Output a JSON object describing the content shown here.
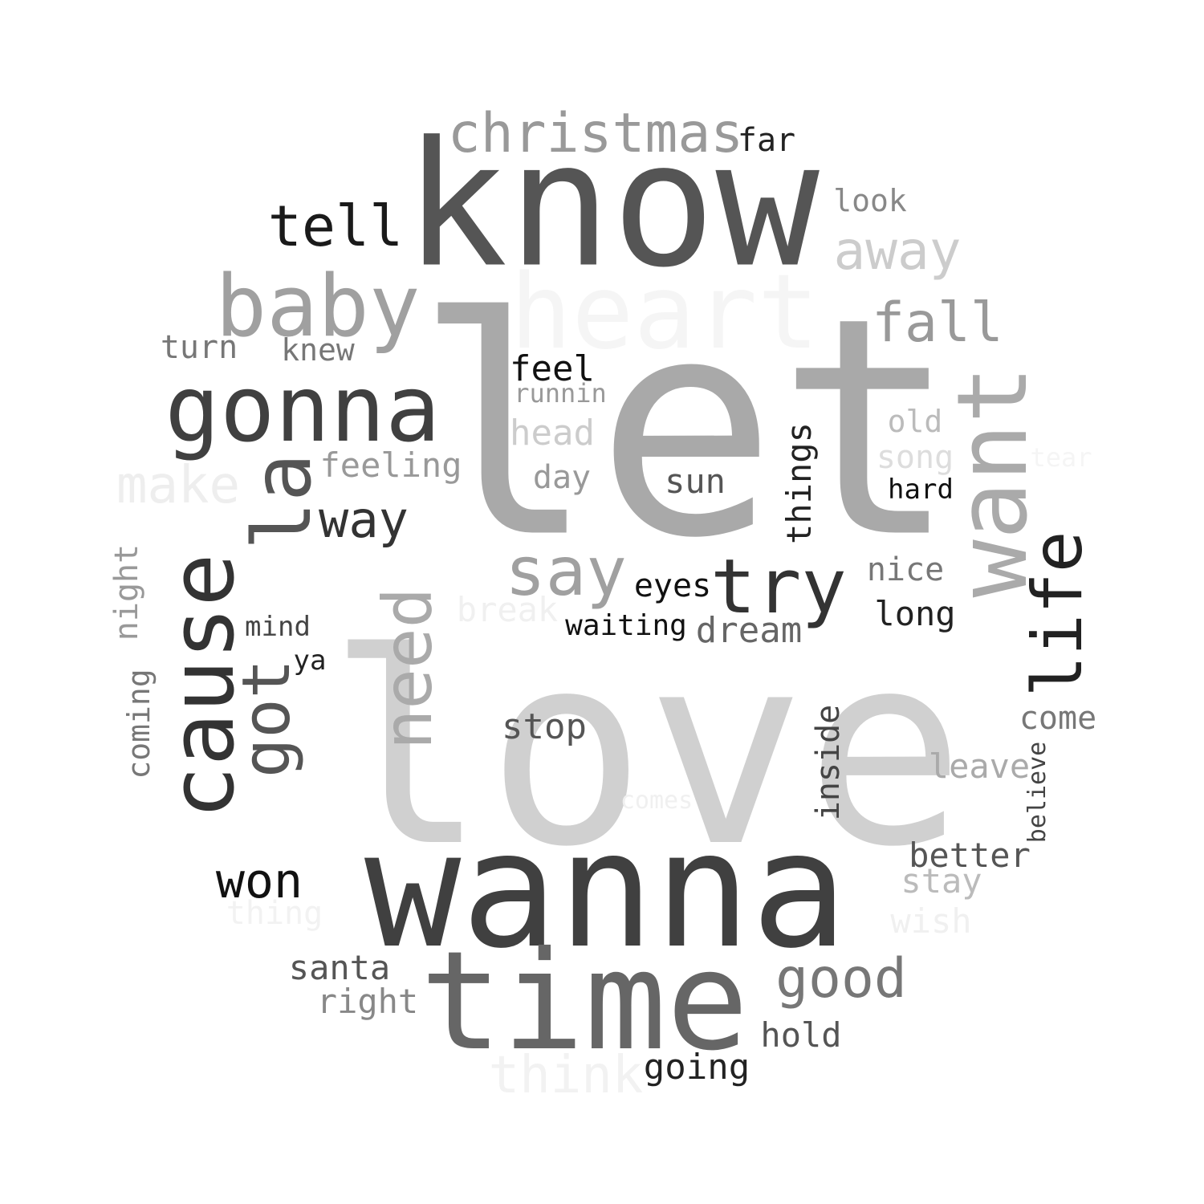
{
  "words": [
    {
      "text": "love",
      "color": "#d0d0d0",
      "vertical": false
    },
    {
      "text": "let",
      "color": "#a9a9a9",
      "vertical": false
    },
    {
      "text": "know",
      "color": "#555555",
      "vertical": false
    },
    {
      "text": "wanna",
      "color": "#404040",
      "vertical": false
    },
    {
      "text": "time",
      "color": "#666666",
      "vertical": false
    },
    {
      "text": "heart",
      "color": "#f5f5f5",
      "vertical": false
    },
    {
      "text": "gonna",
      "color": "#404040",
      "vertical": false
    },
    {
      "text": "cause",
      "color": "#333333",
      "vertical": true
    },
    {
      "text": "want",
      "color": "#aaaaaa",
      "vertical": true
    },
    {
      "text": "baby",
      "color": "#a0a0a0",
      "vertical": false
    },
    {
      "text": "la",
      "color": "#555555",
      "vertical": true
    },
    {
      "text": "need",
      "color": "#aaaaaa",
      "vertical": true
    },
    {
      "text": "christmas",
      "color": "#999999",
      "vertical": false
    },
    {
      "text": "life",
      "color": "#222222",
      "vertical": true
    },
    {
      "text": "got",
      "color": "#555555",
      "vertical": true
    },
    {
      "text": "try",
      "color": "#333333",
      "vertical": false
    },
    {
      "text": "say",
      "color": "#a0a0a0",
      "vertical": false
    },
    {
      "text": "tell",
      "color": "#1a1a1a",
      "vertical": false
    },
    {
      "text": "good",
      "color": "#777777",
      "vertical": false
    },
    {
      "text": "away",
      "color": "#cccccc",
      "vertical": false
    },
    {
      "text": "fall",
      "color": "#999999",
      "vertical": false
    },
    {
      "text": "way",
      "color": "#333333",
      "vertical": false
    },
    {
      "text": "won",
      "color": "#111111",
      "vertical": false
    },
    {
      "text": "make",
      "color": "#eeeeee",
      "vertical": false
    },
    {
      "text": "think",
      "color": "#f2f2f2",
      "vertical": false
    },
    {
      "text": "feeling",
      "color": "#999999",
      "vertical": false
    },
    {
      "text": "night",
      "color": "#999999",
      "vertical": true
    },
    {
      "text": "things",
      "color": "#222222",
      "vertical": true
    },
    {
      "text": "inside",
      "color": "#444444",
      "vertical": true
    },
    {
      "text": "coming",
      "color": "#777777",
      "vertical": true
    },
    {
      "text": "feel",
      "color": "#111111",
      "vertical": false
    },
    {
      "text": "head",
      "color": "#cccccc",
      "vertical": false
    },
    {
      "text": "stop",
      "color": "#555555",
      "vertical": false
    },
    {
      "text": "dream",
      "color": "#666666",
      "vertical": false
    },
    {
      "text": "santa",
      "color": "#555555",
      "vertical": false
    },
    {
      "text": "right",
      "color": "#888888",
      "vertical": false
    },
    {
      "text": "hold",
      "color": "#555555",
      "vertical": false
    },
    {
      "text": "going",
      "color": "#222222",
      "vertical": false
    },
    {
      "text": "better",
      "color": "#555555",
      "vertical": false
    },
    {
      "text": "stay",
      "color": "#bbbbbb",
      "vertical": false
    },
    {
      "text": "wish",
      "color": "#f0f0f0",
      "vertical": false
    },
    {
      "text": "leave",
      "color": "#aaaaaa",
      "vertical": false
    },
    {
      "text": "come",
      "color": "#777777",
      "vertical": false
    },
    {
      "text": "long",
      "color": "#222222",
      "vertical": false
    },
    {
      "text": "nice",
      "color": "#777777",
      "vertical": false
    },
    {
      "text": "sun",
      "color": "#555555",
      "vertical": false
    },
    {
      "text": "eyes",
      "color": "#111111",
      "vertical": false
    },
    {
      "text": "waiting",
      "color": "#111111",
      "vertical": false
    },
    {
      "text": "break",
      "color": "#f0f0f0",
      "vertical": false
    },
    {
      "text": "day",
      "color": "#999999",
      "vertical": false
    },
    {
      "text": "turn",
      "color": "#777777",
      "vertical": false
    },
    {
      "text": "knew",
      "color": "#777777",
      "vertical": false
    },
    {
      "text": "look",
      "color": "#888888",
      "vertical": false
    },
    {
      "text": "far",
      "color": "#222222",
      "vertical": false
    },
    {
      "text": "runnin",
      "color": "#999999",
      "vertical": false
    },
    {
      "text": "old",
      "color": "#bbbbbb",
      "vertical": false
    },
    {
      "text": "song",
      "color": "#dddddd",
      "vertical": false
    },
    {
      "text": "tear",
      "color": "#f5f5f5",
      "vertical": false
    },
    {
      "text": "hard",
      "color": "#111111",
      "vertical": false
    },
    {
      "text": "mind",
      "color": "#444444",
      "vertical": false
    },
    {
      "text": "ya",
      "color": "#222222",
      "vertical": false
    },
    {
      "text": "thing",
      "color": "#f2f2f2",
      "vertical": false
    },
    {
      "text": "comes",
      "color": "#f0f0f0",
      "vertical": false
    },
    {
      "text": "believe",
      "color": "#444444",
      "vertical": true
    }
  ]
}
